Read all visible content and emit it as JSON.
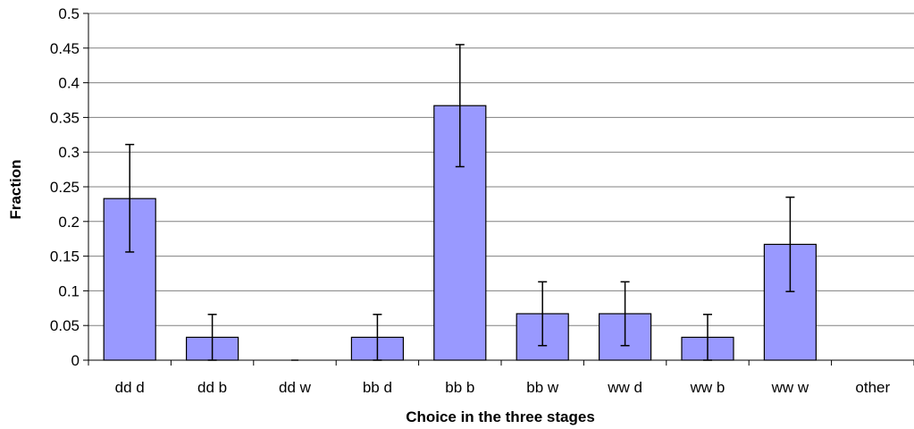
{
  "chart_data": {
    "type": "bar",
    "title": "",
    "xlabel": "Choice in the three stages",
    "ylabel": "Fraction",
    "categories": [
      "dd d",
      "dd b",
      "dd w",
      "bb d",
      "bb b",
      "bb w",
      "ww d",
      "ww b",
      "ww w",
      "other"
    ],
    "values": [
      0.233,
      0.033,
      0.0,
      0.033,
      0.367,
      0.067,
      0.067,
      0.033,
      0.167,
      null
    ],
    "error_low": [
      0.156,
      0.0,
      0.0,
      0.0,
      0.279,
      0.021,
      0.021,
      0.0,
      0.099,
      null
    ],
    "error_high": [
      0.311,
      0.066,
      0.0,
      0.066,
      0.455,
      0.113,
      0.113,
      0.066,
      0.235,
      null
    ],
    "ylim": [
      0,
      0.5
    ],
    "yticks": [
      "0",
      "0.05",
      "0.1",
      "0.15",
      "0.2",
      "0.25",
      "0.3",
      "0.35",
      "0.4",
      "0.45",
      "0.5"
    ],
    "grid": true,
    "bar_color": "#9999ff",
    "bar_edge_color": "#000000",
    "grid_color": "#808080"
  }
}
